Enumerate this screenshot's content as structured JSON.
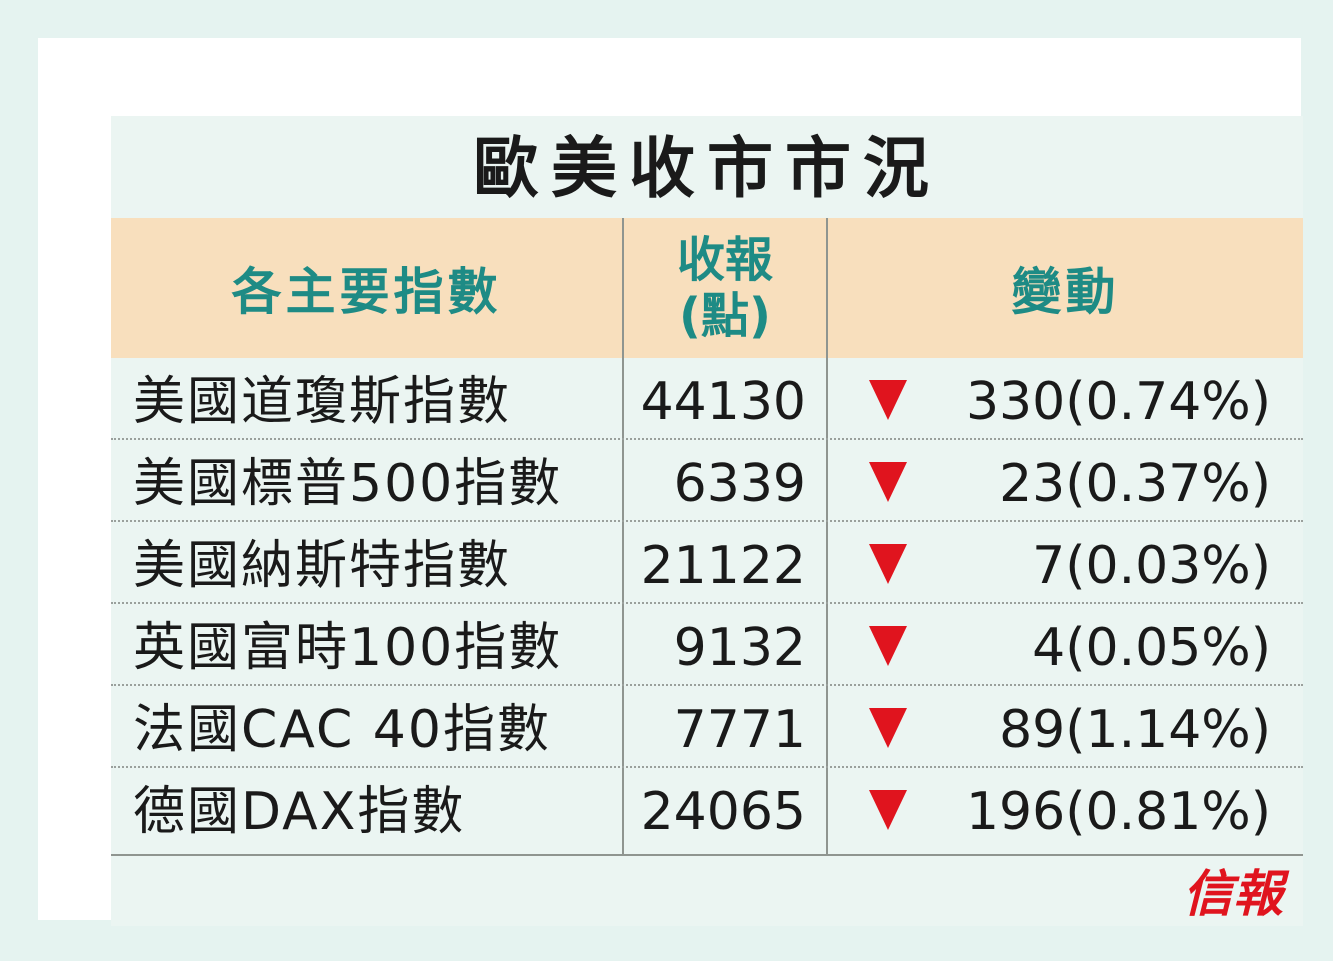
{
  "title": "歐美收市市況",
  "header": {
    "col_index": "各主要指數",
    "col_close_line1": "收報",
    "col_close_line2": "(點)",
    "col_change": "變動"
  },
  "rows": [
    {
      "name": "美國道瓊斯指數",
      "close": "44130",
      "direction": "down",
      "change": "330(0.74%)"
    },
    {
      "name": "美國標普500指數",
      "close": "6339",
      "direction": "down",
      "change": "23(0.37%)"
    },
    {
      "name": "美國納斯特指數",
      "close": "21122",
      "direction": "down",
      "change": "7(0.03%)"
    },
    {
      "name": "英國富時100指數",
      "close": "9132",
      "direction": "down",
      "change": "4(0.05%)"
    },
    {
      "name": "法國CAC 40指數",
      "close": "7771",
      "direction": "down",
      "change": "89(1.14%)"
    },
    {
      "name": "德國DAX指數",
      "close": "24065",
      "direction": "down",
      "change": "196(0.81%)"
    }
  ],
  "logo": "信報",
  "colors": {
    "header_bg": "#f8dfbd",
    "header_text": "#1e8b85",
    "down_arrow": "#e0141e",
    "panel_bg": "#ebf5f2"
  },
  "icons": {
    "down_arrow": "down-triangle-icon"
  }
}
